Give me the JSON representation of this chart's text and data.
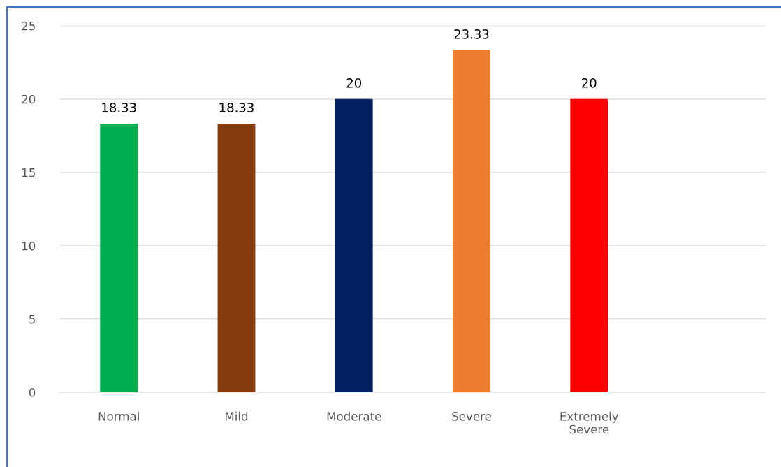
{
  "chart_data": {
    "type": "bar",
    "categories": [
      "Normal",
      "Mild",
      "Moderate",
      "Severe",
      "Extremely\nSevere",
      null
    ],
    "values": [
      18.33,
      18.33,
      20,
      23.33,
      20,
      null
    ],
    "colors": [
      "#00b050",
      "#843c0c",
      "#002060",
      "#ed7d31",
      "#ff0000",
      "#000000"
    ],
    "ylim": [
      0,
      25
    ],
    "yticks": [
      0,
      5,
      10,
      15,
      20,
      25
    ],
    "grid": "y",
    "data_labels": true
  }
}
